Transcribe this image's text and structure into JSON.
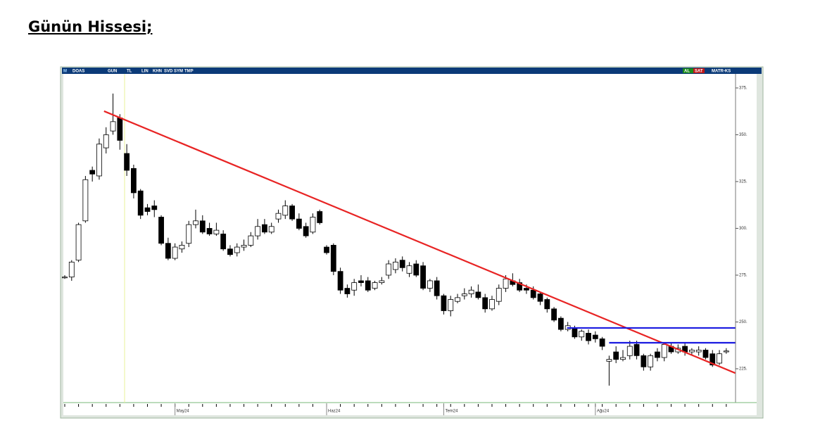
{
  "header": {
    "title": "Günün Hissesi;"
  },
  "toolbar": [
    "M",
    "DOAS",
    "GUN",
    "TL",
    "LIN",
    "KHN",
    "SVD",
    "SYM",
    "TMP",
    "AL",
    "SAT",
    "MATR-KS"
  ],
  "chart_data": {
    "type": "candlestick",
    "categories": [
      null,
      null,
      null,
      null,
      null,
      null,
      null,
      null,
      null,
      null,
      null,
      null,
      null,
      null,
      null,
      null,
      "May24",
      null,
      null,
      null,
      null,
      null,
      null,
      null,
      null,
      null,
      null,
      null,
      null,
      null,
      null,
      null,
      null,
      null,
      null,
      null,
      null,
      null,
      "Haz24",
      null,
      null,
      null,
      null,
      null,
      null,
      null,
      null,
      null,
      null,
      null,
      null,
      null,
      null,
      null,
      null,
      "Tem24",
      null,
      null,
      null,
      null,
      null,
      null,
      null,
      null,
      null,
      null,
      null,
      null,
      null,
      null,
      null,
      null,
      null,
      null,
      null,
      null,
      null,
      "Ağu24",
      null,
      null,
      null,
      null,
      null,
      null,
      null,
      null,
      null,
      null,
      null,
      null,
      null,
      null,
      null,
      null,
      null,
      null,
      null
    ],
    "open": [
      274,
      274,
      283,
      304,
      331,
      328,
      343,
      352,
      359,
      340,
      332,
      320,
      311,
      312,
      306,
      292,
      284,
      289,
      292,
      302,
      304,
      300,
      297,
      297,
      289,
      287,
      290,
      291,
      296,
      302,
      298,
      305,
      307,
      312,
      305,
      301,
      298,
      309,
      290,
      291,
      277,
      268,
      267,
      272,
      272,
      268,
      271,
      275,
      278,
      283,
      276,
      281,
      280,
      268,
      272,
      264,
      256,
      261,
      264,
      265,
      266,
      263,
      257,
      261,
      268,
      272,
      271,
      268,
      267,
      265,
      262,
      257,
      252,
      246,
      247,
      242,
      244,
      243,
      241,
      229,
      234,
      230,
      232,
      238,
      232,
      226,
      234,
      231,
      237,
      234,
      237,
      234,
      234,
      235,
      233,
      228,
      234
    ],
    "high": [
      275,
      283,
      303,
      328,
      333,
      348,
      354,
      372,
      361,
      345,
      334,
      321,
      313,
      315,
      307,
      295,
      292,
      293,
      304,
      310,
      307,
      303,
      303,
      299,
      291,
      292,
      294,
      298,
      305,
      305,
      303,
      310,
      315,
      313,
      308,
      303,
      308,
      310,
      291,
      292,
      279,
      270,
      273,
      275,
      274,
      272,
      274,
      283,
      284,
      285,
      282,
      283,
      282,
      273,
      274,
      265,
      264,
      265,
      268,
      269,
      270,
      265,
      264,
      270,
      275,
      276,
      273,
      270,
      269,
      266,
      263,
      258,
      253,
      250,
      248,
      246,
      246,
      245,
      242,
      232,
      237,
      235,
      240,
      240,
      233,
      233,
      236,
      239,
      239,
      238,
      239,
      236,
      237,
      236,
      235,
      235,
      236
    ],
    "low": [
      273,
      272,
      282,
      303,
      325,
      326,
      340,
      350,
      342,
      328,
      316,
      305,
      307,
      306,
      291,
      283,
      283,
      287,
      290,
      300,
      297,
      296,
      296,
      288,
      285,
      285,
      288,
      290,
      294,
      297,
      297,
      303,
      305,
      304,
      299,
      295,
      297,
      302,
      286,
      275,
      265,
      263,
      264,
      269,
      266,
      267,
      270,
      273,
      276,
      277,
      274,
      274,
      267,
      266,
      262,
      254,
      253,
      260,
      262,
      263,
      262,
      255,
      256,
      259,
      266,
      269,
      266,
      265,
      262,
      259,
      255,
      250,
      245,
      245,
      241,
      240,
      238,
      239,
      235,
      216,
      228,
      229,
      230,
      230,
      224,
      224,
      229,
      229,
      233,
      233,
      232,
      232,
      232,
      230,
      226,
      227,
      233
    ],
    "close": [
      274,
      282,
      302,
      326,
      329,
      345,
      350,
      357,
      347,
      331,
      319,
      307,
      309,
      310,
      292,
      284,
      290,
      291,
      302,
      304,
      298,
      297,
      299,
      289,
      286,
      290,
      291,
      296,
      301,
      298,
      301,
      308,
      312,
      305,
      300,
      296,
      306,
      303,
      287,
      277,
      267,
      265,
      271,
      271,
      267,
      271,
      272,
      281,
      282,
      279,
      280,
      275,
      268,
      272,
      264,
      256,
      262,
      263,
      265,
      267,
      263,
      257,
      262,
      268,
      273,
      270,
      267,
      267,
      263,
      261,
      257,
      251,
      246,
      248,
      242,
      245,
      240,
      241,
      237,
      230,
      230,
      231,
      237,
      232,
      226,
      232,
      231,
      238,
      234,
      236,
      234,
      235,
      235,
      231,
      227,
      233,
      234.5
    ],
    "lines": [
      {
        "color": "#e82424",
        "x": [
          5.7,
          97.3
        ],
        "values": [
          362.6,
          222.7
        ]
      },
      {
        "color": "#1a1ae0",
        "x": [
          72.9,
          97.3
        ],
        "values": [
          246.8,
          246.8
        ]
      },
      {
        "color": "#1a1ae0",
        "x": [
          79,
          97.3
        ],
        "values": [
          238.9,
          238.9
        ]
      }
    ],
    "ylim": [
      207.5,
      382.5
    ],
    "yticks": [
      {
        "value": 225,
        "label": "225."
      },
      {
        "value": 250,
        "label": "250."
      },
      {
        "value": 275,
        "label": "275."
      },
      {
        "value": 300,
        "label": "300."
      },
      {
        "value": 325,
        "label": "325."
      },
      {
        "value": 350,
        "label": "350."
      },
      {
        "value": 375,
        "label": "375."
      }
    ],
    "up_color": "#ffffff",
    "down_color": "#000000"
  }
}
